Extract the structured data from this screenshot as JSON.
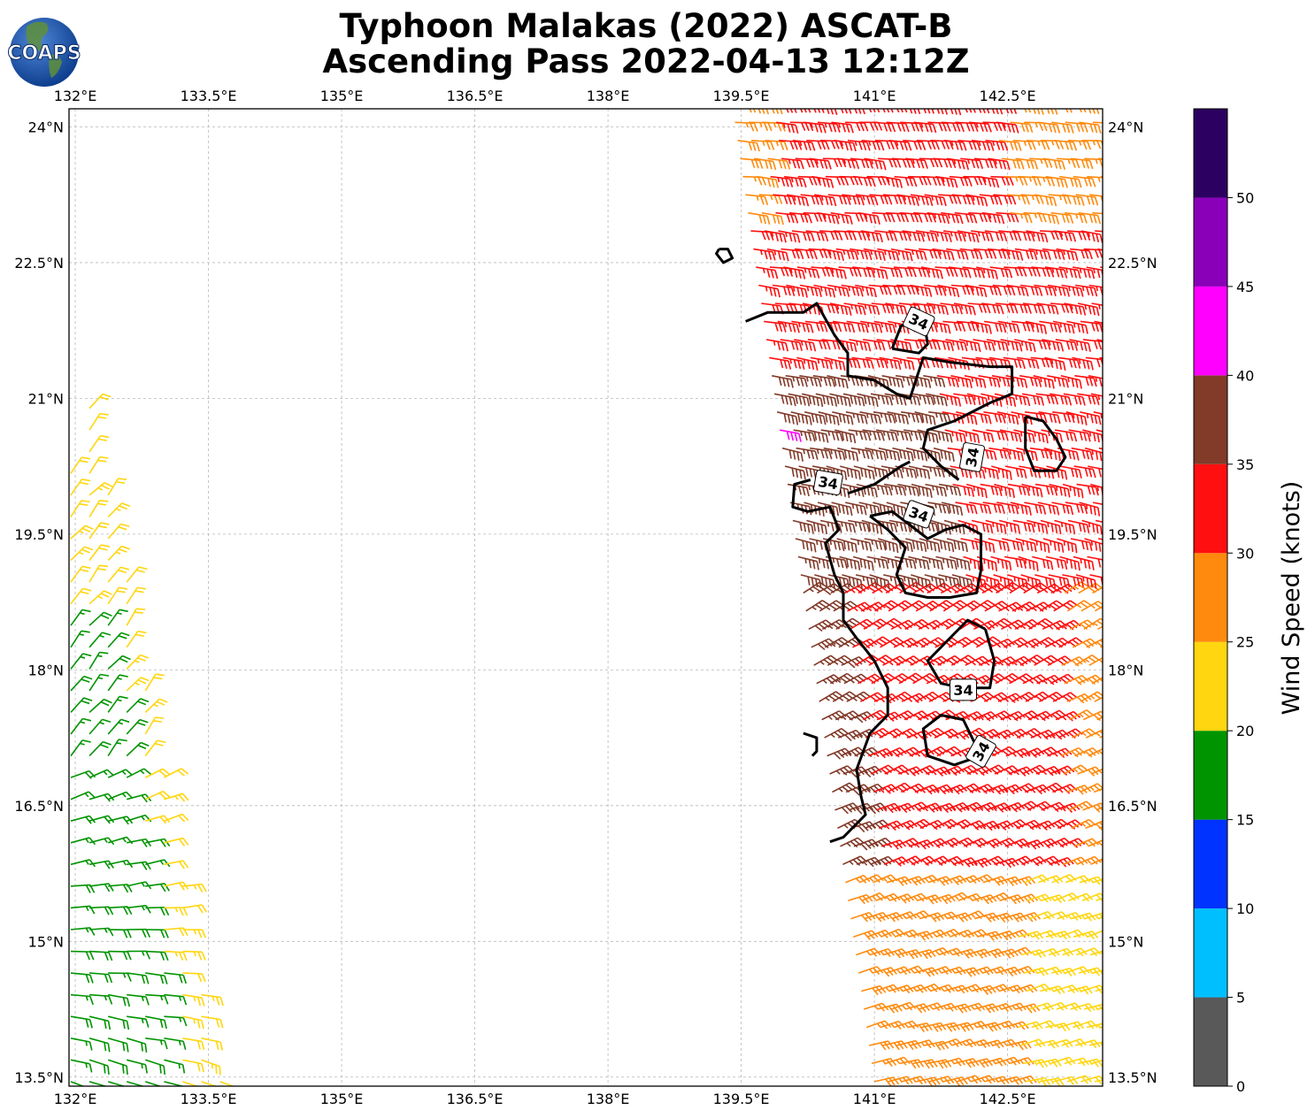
{
  "title": {
    "line1": "Typhoon Malakas (2022) ASCAT-B",
    "line2": "Ascending Pass 2022-04-13 12:12Z"
  },
  "logo": {
    "text": "COAPS",
    "icon": "globe-logo-icon"
  },
  "map": {
    "lon_range": [
      131.93,
      143.57
    ],
    "lat_range": [
      13.4,
      24.2
    ],
    "lon_ticks": [
      "132°E",
      "133.5°E",
      "135°E",
      "136.5°E",
      "138°E",
      "139.5°E",
      "141°E",
      "142.5°E"
    ],
    "lon_tick_values": [
      132,
      133.5,
      135,
      136.5,
      138,
      139.5,
      141,
      142.5
    ],
    "lat_ticks": [
      "24°N",
      "22.5°N",
      "21°N",
      "19.5°N",
      "18°N",
      "16.5°N",
      "15°N",
      "13.5°N"
    ],
    "lat_tick_values": [
      24,
      22.5,
      21,
      19.5,
      18,
      16.5,
      15,
      13.5
    ],
    "gridlines": true,
    "contour_value_label": "34",
    "contour_labels": [
      {
        "text": "34",
        "lon": 141.5,
        "lat": 21.85,
        "rot": 25
      },
      {
        "text": "34",
        "lon": 142.1,
        "lat": 20.35,
        "rot": -80
      },
      {
        "text": "34",
        "lon": 140.48,
        "lat": 20.07,
        "rot": 10
      },
      {
        "text": "34",
        "lon": 141.5,
        "lat": 19.72,
        "rot": 20
      },
      {
        "text": "34",
        "lon": 142.0,
        "lat": 17.78,
        "rot": 0
      },
      {
        "text": "34",
        "lon": 142.2,
        "lat": 17.1,
        "rot": -60
      }
    ]
  },
  "colorbar": {
    "label": "Wind Speed (knots)",
    "tick_labels": [
      "0",
      "5",
      "10",
      "15",
      "20",
      "25",
      "30",
      "35",
      "40",
      "45",
      "50"
    ],
    "bins": [
      {
        "min": 0,
        "max": 5,
        "color": "#595959"
      },
      {
        "min": 5,
        "max": 10,
        "color": "#00bfff"
      },
      {
        "min": 10,
        "max": 15,
        "color": "#0033ff"
      },
      {
        "min": 15,
        "max": 20,
        "color": "#009400"
      },
      {
        "min": 20,
        "max": 25,
        "color": "#ffd60f"
      },
      {
        "min": 25,
        "max": 30,
        "color": "#ff8a0d"
      },
      {
        "min": 30,
        "max": 35,
        "color": "#ff0f0f"
      },
      {
        "min": 35,
        "max": 40,
        "color": "#823a29"
      },
      {
        "min": 40,
        "max": 45,
        "color": "#ff00ff"
      },
      {
        "min": 45,
        "max": 50,
        "color": "#8a00b8"
      },
      {
        "min": 50,
        "max": 55,
        "color": "#2c0060"
      }
    ]
  }
}
